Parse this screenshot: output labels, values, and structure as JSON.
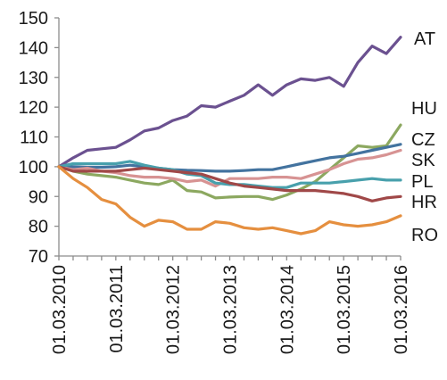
{
  "chart_data": {
    "type": "line",
    "title": "",
    "xlabel": "",
    "ylabel": "",
    "ylim": [
      70,
      150
    ],
    "yticks": [
      70,
      80,
      90,
      100,
      110,
      120,
      130,
      140,
      150
    ],
    "xticks": [
      "01.03.2010",
      "01.03.2011",
      "01.03.2012",
      "01.03.2013",
      "01.03.2014",
      "01.03.2015",
      "01.03.2016"
    ],
    "x": [
      "2010-03",
      "2010-06",
      "2010-09",
      "2010-12",
      "2011-03",
      "2011-06",
      "2011-09",
      "2011-12",
      "2012-03",
      "2012-06",
      "2012-09",
      "2012-12",
      "2013-03",
      "2013-06",
      "2013-09",
      "2013-12",
      "2014-03",
      "2014-06",
      "2014-09",
      "2014-12",
      "2015-03",
      "2015-06",
      "2015-09",
      "2015-12",
      "2016-03"
    ],
    "grid": false,
    "legend": "series labels at line ends, right side",
    "series": [
      {
        "name": "AT",
        "color": "#6b5190",
        "values": [
          100,
          103,
          105.5,
          106,
          106.5,
          109,
          112,
          113,
          115.5,
          117,
          120.5,
          120,
          122,
          124,
          127.5,
          124,
          127.5,
          129.5,
          129,
          130,
          127,
          135,
          140.5,
          138,
          143.5
        ]
      },
      {
        "name": "HU",
        "color": "#8ca860",
        "values": [
          100,
          98.5,
          97.5,
          97,
          96.5,
          95.5,
          94.5,
          94,
          95.5,
          92,
          91.5,
          89.5,
          89.8,
          90,
          90,
          89,
          90.5,
          92.5,
          95,
          99,
          103,
          107,
          106.5,
          107,
          114
        ]
      },
      {
        "name": "CZ",
        "color": "#43739f",
        "values": [
          100,
          100,
          99.8,
          99.8,
          100,
          100.5,
          100,
          99.5,
          99,
          98.8,
          98.7,
          98.5,
          98.5,
          98.7,
          99,
          99,
          100,
          101,
          102,
          103,
          103.5,
          104.5,
          105.5,
          106.5,
          107.5
        ]
      },
      {
        "name": "SK",
        "color": "#d79393",
        "values": [
          100,
          99,
          99.5,
          98.5,
          98,
          97,
          96.5,
          96.5,
          96,
          95,
          95.5,
          93.5,
          96,
          96,
          96,
          96.5,
          96.5,
          96,
          97.5,
          99,
          101,
          102.5,
          103,
          104,
          105.5
        ]
      },
      {
        "name": "PL",
        "color": "#48a0ac",
        "values": [
          100,
          101,
          101,
          101,
          101,
          101.8,
          100.5,
          99.5,
          99,
          97.5,
          97,
          94.5,
          94,
          94,
          93.5,
          93,
          93,
          94.5,
          94.5,
          94.5,
          95,
          95.5,
          96,
          95.5,
          95.5
        ]
      },
      {
        "name": "HR",
        "color": "#a04848",
        "values": [
          100,
          98.5,
          98.5,
          98.5,
          98.5,
          99,
          99.5,
          99,
          98.5,
          98,
          97.5,
          96,
          94.5,
          93.5,
          93,
          92.5,
          92,
          92,
          92,
          91.5,
          91,
          90,
          88.5,
          89.5,
          90
        ]
      },
      {
        "name": "RO",
        "color": "#e58f3f",
        "values": [
          100,
          96,
          93,
          89,
          87.5,
          83,
          80,
          82,
          81.5,
          79,
          79,
          81.5,
          81,
          79.5,
          79,
          79.5,
          78.5,
          77.5,
          78.5,
          81.5,
          80.5,
          80,
          80.5,
          81.5,
          83.5
        ]
      }
    ]
  }
}
